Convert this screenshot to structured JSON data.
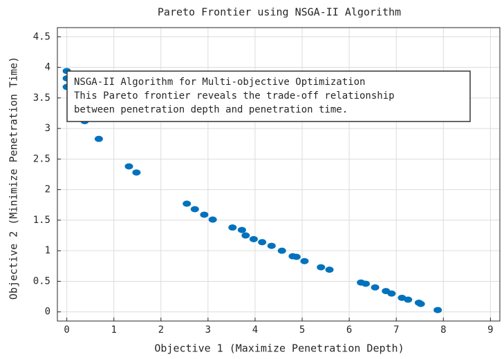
{
  "chart_data": {
    "type": "scatter",
    "title": "Pareto Frontier using NSGA-II Algorithm",
    "x_label": "Objective 1 (Maximize Penetration Depth)",
    "y_label": "Objective 2 (Minimize Penetration Time)",
    "annotation": [
      "NSGA-II Algorithm for Multi-objective Optimization",
      "This Pareto frontier reveals the trade-off relationship",
      "between penetration depth and penetration time."
    ],
    "color": "#0072bd",
    "x": [
      0,
      0,
      0,
      0.38,
      0.68,
      1.32,
      1.48,
      2.55,
      2.72,
      2.92,
      3.1,
      3.52,
      3.72,
      3.8,
      3.97,
      4.15,
      4.35,
      4.57,
      4.8,
      4.88,
      5.05,
      5.4,
      5.58,
      6.25,
      6.35,
      6.55,
      6.78,
      6.9,
      7.12,
      7.25,
      7.48,
      7.52,
      7.88
    ],
    "values": [
      3.94,
      3.82,
      3.68,
      3.12,
      2.83,
      2.38,
      2.28,
      1.77,
      1.68,
      1.59,
      1.51,
      1.38,
      1.34,
      1.25,
      1.19,
      1.14,
      1.08,
      1.0,
      0.91,
      0.9,
      0.83,
      0.73,
      0.69,
      0.48,
      0.46,
      0.4,
      0.34,
      0.3,
      0.23,
      0.2,
      0.15,
      0.13,
      0.03
    ],
    "xlim": [
      -0.2,
      9.2
    ],
    "ylim": [
      -0.15,
      4.65
    ],
    "xticks": [
      0,
      1,
      2,
      3,
      4,
      5,
      6,
      7,
      8,
      9
    ],
    "yticks": [
      0,
      0.5,
      1,
      1.5,
      2,
      2.5,
      3,
      3.5,
      4,
      4.5
    ],
    "grid": true
  }
}
